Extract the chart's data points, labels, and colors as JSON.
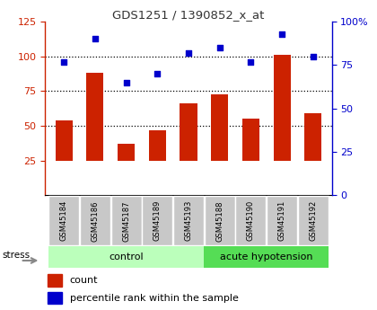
{
  "title": "GDS1251 / 1390852_x_at",
  "samples": [
    "GSM45184",
    "GSM45186",
    "GSM45187",
    "GSM45189",
    "GSM45193",
    "GSM45188",
    "GSM45190",
    "GSM45191",
    "GSM45192"
  ],
  "counts": [
    54,
    88,
    37,
    47,
    66,
    73,
    55,
    101,
    59
  ],
  "percentiles": [
    77,
    90,
    65,
    70,
    82,
    85,
    77,
    93,
    80
  ],
  "bar_color": "#cc2200",
  "dot_color": "#0000cc",
  "left_ylim": [
    0,
    125
  ],
  "right_ylim": [
    0,
    100
  ],
  "left_yticks": [
    25,
    50,
    75,
    100,
    125
  ],
  "right_yticks": [
    0,
    25,
    50,
    75,
    100
  ],
  "right_yticklabels": [
    "0",
    "25",
    "50",
    "75",
    "100%"
  ],
  "grid_values": [
    50,
    75,
    100
  ],
  "control_color": "#bbffbb",
  "acute_color": "#55dd55",
  "title_color": "#333333",
  "left_axis_color": "#cc2200",
  "right_axis_color": "#0000cc",
  "bar_bottom": 25,
  "n_control": 5,
  "n_acute": 4
}
